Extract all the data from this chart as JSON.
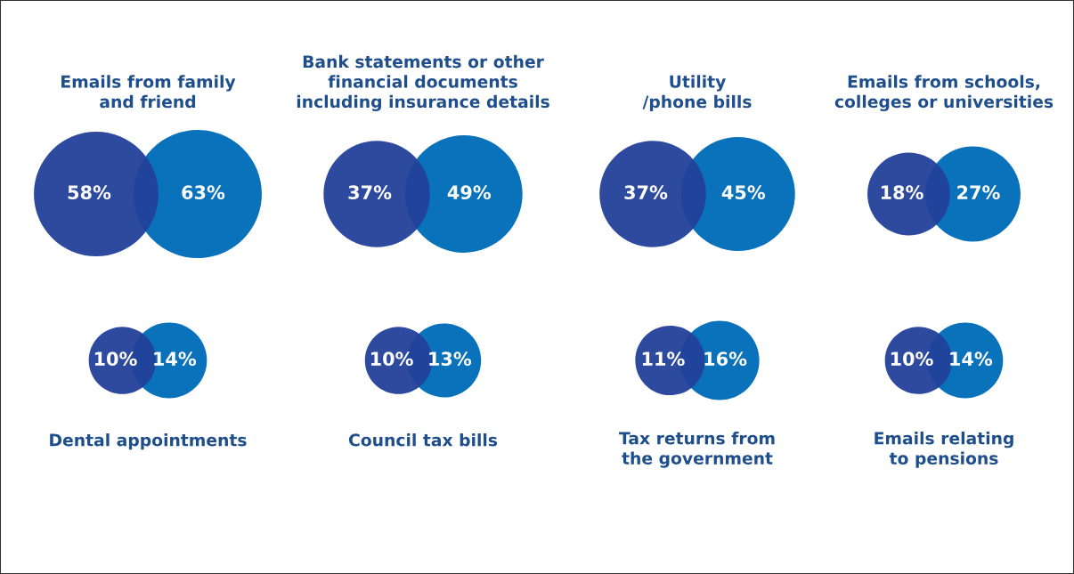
{
  "chart_data": {
    "type": "other",
    "categories": [
      "Emails from family\nand friend",
      "Bank statements or other\nfinancial documents\nincluding insurance details",
      "Utility\n/phone bills",
      "Emails from schools,\ncolleges or universities",
      "Dental appointments",
      "Council tax bills",
      "Tax returns from\nthe government",
      "Emails relating\nto pensions"
    ],
    "series": [
      {
        "color": "#22409a",
        "values": [
          58,
          37,
          37,
          18,
          10,
          10,
          11,
          10
        ],
        "value_labels": [
          "58%",
          "37%",
          "37%",
          "18%",
          "10%",
          "10%",
          "11%",
          "10%"
        ]
      },
      {
        "color": "#0a72ba",
        "values": [
          63,
          49,
          45,
          27,
          14,
          13,
          16,
          14
        ],
        "value_labels": [
          "63%",
          "49%",
          "45%",
          "27%",
          "14%",
          "13%",
          "16%",
          "14%"
        ]
      }
    ]
  }
}
